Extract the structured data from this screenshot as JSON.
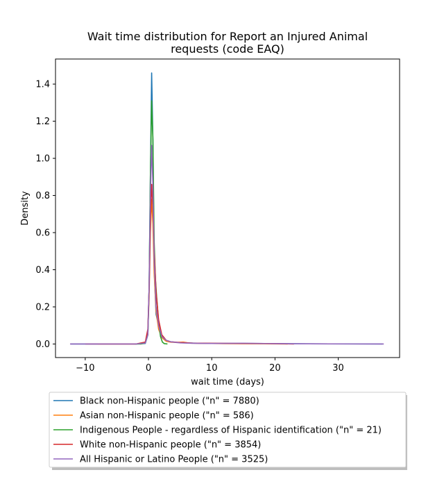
{
  "chart_data": {
    "type": "line",
    "title_lines": [
      "Wait time distribution  for Report an Injured Animal",
      "requests (code EAQ)"
    ],
    "xlabel": "wait time (days)",
    "ylabel": "Density",
    "xlim": [
      -14.7,
      39.7
    ],
    "ylim": [
      -0.073,
      1.535
    ],
    "xticks": [
      -10,
      0,
      10,
      20,
      30
    ],
    "xtick_labels": [
      "−10",
      "0",
      "10",
      "20",
      "30"
    ],
    "yticks": [
      0.0,
      0.2,
      0.4,
      0.6,
      0.8,
      1.0,
      1.2,
      1.4
    ],
    "ytick_labels": [
      "0.0",
      "0.2",
      "0.4",
      "0.6",
      "0.8",
      "1.0",
      "1.2",
      "1.4"
    ],
    "legend_position": "below-chart",
    "grid": false,
    "series": [
      {
        "name": "Black non-Hispanic people (\"n\" = 7880)",
        "color": "#1f77b4",
        "points": [
          [
            -12.3,
            0
          ],
          [
            -2,
            0
          ],
          [
            -0.5,
            0.003
          ],
          [
            -0.1,
            0.05
          ],
          [
            0.1,
            0.3
          ],
          [
            0.3,
            0.9
          ],
          [
            0.5,
            1.46
          ],
          [
            0.7,
            1.1
          ],
          [
            0.9,
            0.4
          ],
          [
            1.2,
            0.16
          ],
          [
            1.6,
            0.1
          ],
          [
            2.1,
            0.04
          ],
          [
            2.8,
            0.02
          ],
          [
            3.5,
            0.012
          ],
          [
            5,
            0.007
          ],
          [
            7,
            0.005
          ],
          [
            10,
            0.003
          ],
          [
            15,
            0.003
          ],
          [
            20,
            0.002
          ],
          [
            25,
            0.001
          ],
          [
            37,
            0
          ]
        ]
      },
      {
        "name": "Asian non-Hispanic people (\"n\" = 586)",
        "color": "#ff7f0e",
        "points": [
          [
            -8,
            0
          ],
          [
            -2,
            0
          ],
          [
            -0.5,
            0.01
          ],
          [
            -0.1,
            0.06
          ],
          [
            0.1,
            0.25
          ],
          [
            0.3,
            0.6
          ],
          [
            0.5,
            0.78
          ],
          [
            0.7,
            0.65
          ],
          [
            0.9,
            0.38
          ],
          [
            1.2,
            0.18
          ],
          [
            1.6,
            0.08
          ],
          [
            2.1,
            0.035
          ],
          [
            2.8,
            0.015
          ],
          [
            3.5,
            0.01
          ],
          [
            4.5,
            0.008
          ],
          [
            5.5,
            0.01
          ],
          [
            6.5,
            0.005
          ],
          [
            8,
            0.004
          ],
          [
            12,
            0.002
          ],
          [
            18,
            0.001
          ],
          [
            22,
            0
          ]
        ]
      },
      {
        "name": "Indigenous People - regardless of Hispanic identification (\"n\" = 21)",
        "color": "#2ca02c",
        "points": [
          [
            -2.2,
            0
          ],
          [
            -1.2,
            0
          ],
          [
            -0.5,
            0.005
          ],
          [
            -0.1,
            0.05
          ],
          [
            0.1,
            0.3
          ],
          [
            0.3,
            0.9
          ],
          [
            0.5,
            1.31
          ],
          [
            0.7,
            1.1
          ],
          [
            0.9,
            0.55
          ],
          [
            1.1,
            0.35
          ],
          [
            1.3,
            0.25
          ],
          [
            1.6,
            0.12
          ],
          [
            1.9,
            0.04
          ],
          [
            2.2,
            0.01
          ],
          [
            2.5,
            0.002
          ],
          [
            3,
            0
          ]
        ]
      },
      {
        "name": "White non-Hispanic people (\"n\" = 3854)",
        "color": "#d62728",
        "points": [
          [
            -10,
            0
          ],
          [
            -2,
            0
          ],
          [
            -0.5,
            0.01
          ],
          [
            -0.1,
            0.08
          ],
          [
            0.1,
            0.3
          ],
          [
            0.3,
            0.65
          ],
          [
            0.5,
            0.86
          ],
          [
            0.7,
            0.75
          ],
          [
            0.9,
            0.5
          ],
          [
            1.2,
            0.28
          ],
          [
            1.6,
            0.13
          ],
          [
            2.1,
            0.05
          ],
          [
            2.8,
            0.02
          ],
          [
            3.5,
            0.012
          ],
          [
            5,
            0.008
          ],
          [
            7,
            0.005
          ],
          [
            10,
            0.004
          ],
          [
            15,
            0.003
          ],
          [
            20,
            0.002
          ],
          [
            23,
            0
          ]
        ]
      },
      {
        "name": "All Hispanic or Latino People (\"n\" = 3525)",
        "color": "#9467bd",
        "points": [
          [
            -12.4,
            0
          ],
          [
            -2,
            0
          ],
          [
            -0.5,
            0.005
          ],
          [
            -0.1,
            0.05
          ],
          [
            0.1,
            0.3
          ],
          [
            0.3,
            0.8
          ],
          [
            0.5,
            1.07
          ],
          [
            0.7,
            0.85
          ],
          [
            0.9,
            0.45
          ],
          [
            1.2,
            0.2
          ],
          [
            1.6,
            0.1
          ],
          [
            2.1,
            0.04
          ],
          [
            2.8,
            0.02
          ],
          [
            3.5,
            0.012
          ],
          [
            5,
            0.006
          ],
          [
            7,
            0.004
          ],
          [
            10,
            0.003
          ],
          [
            15,
            0.004
          ],
          [
            20,
            0.002
          ],
          [
            25,
            0.001
          ],
          [
            37.2,
            0
          ]
        ]
      }
    ]
  }
}
